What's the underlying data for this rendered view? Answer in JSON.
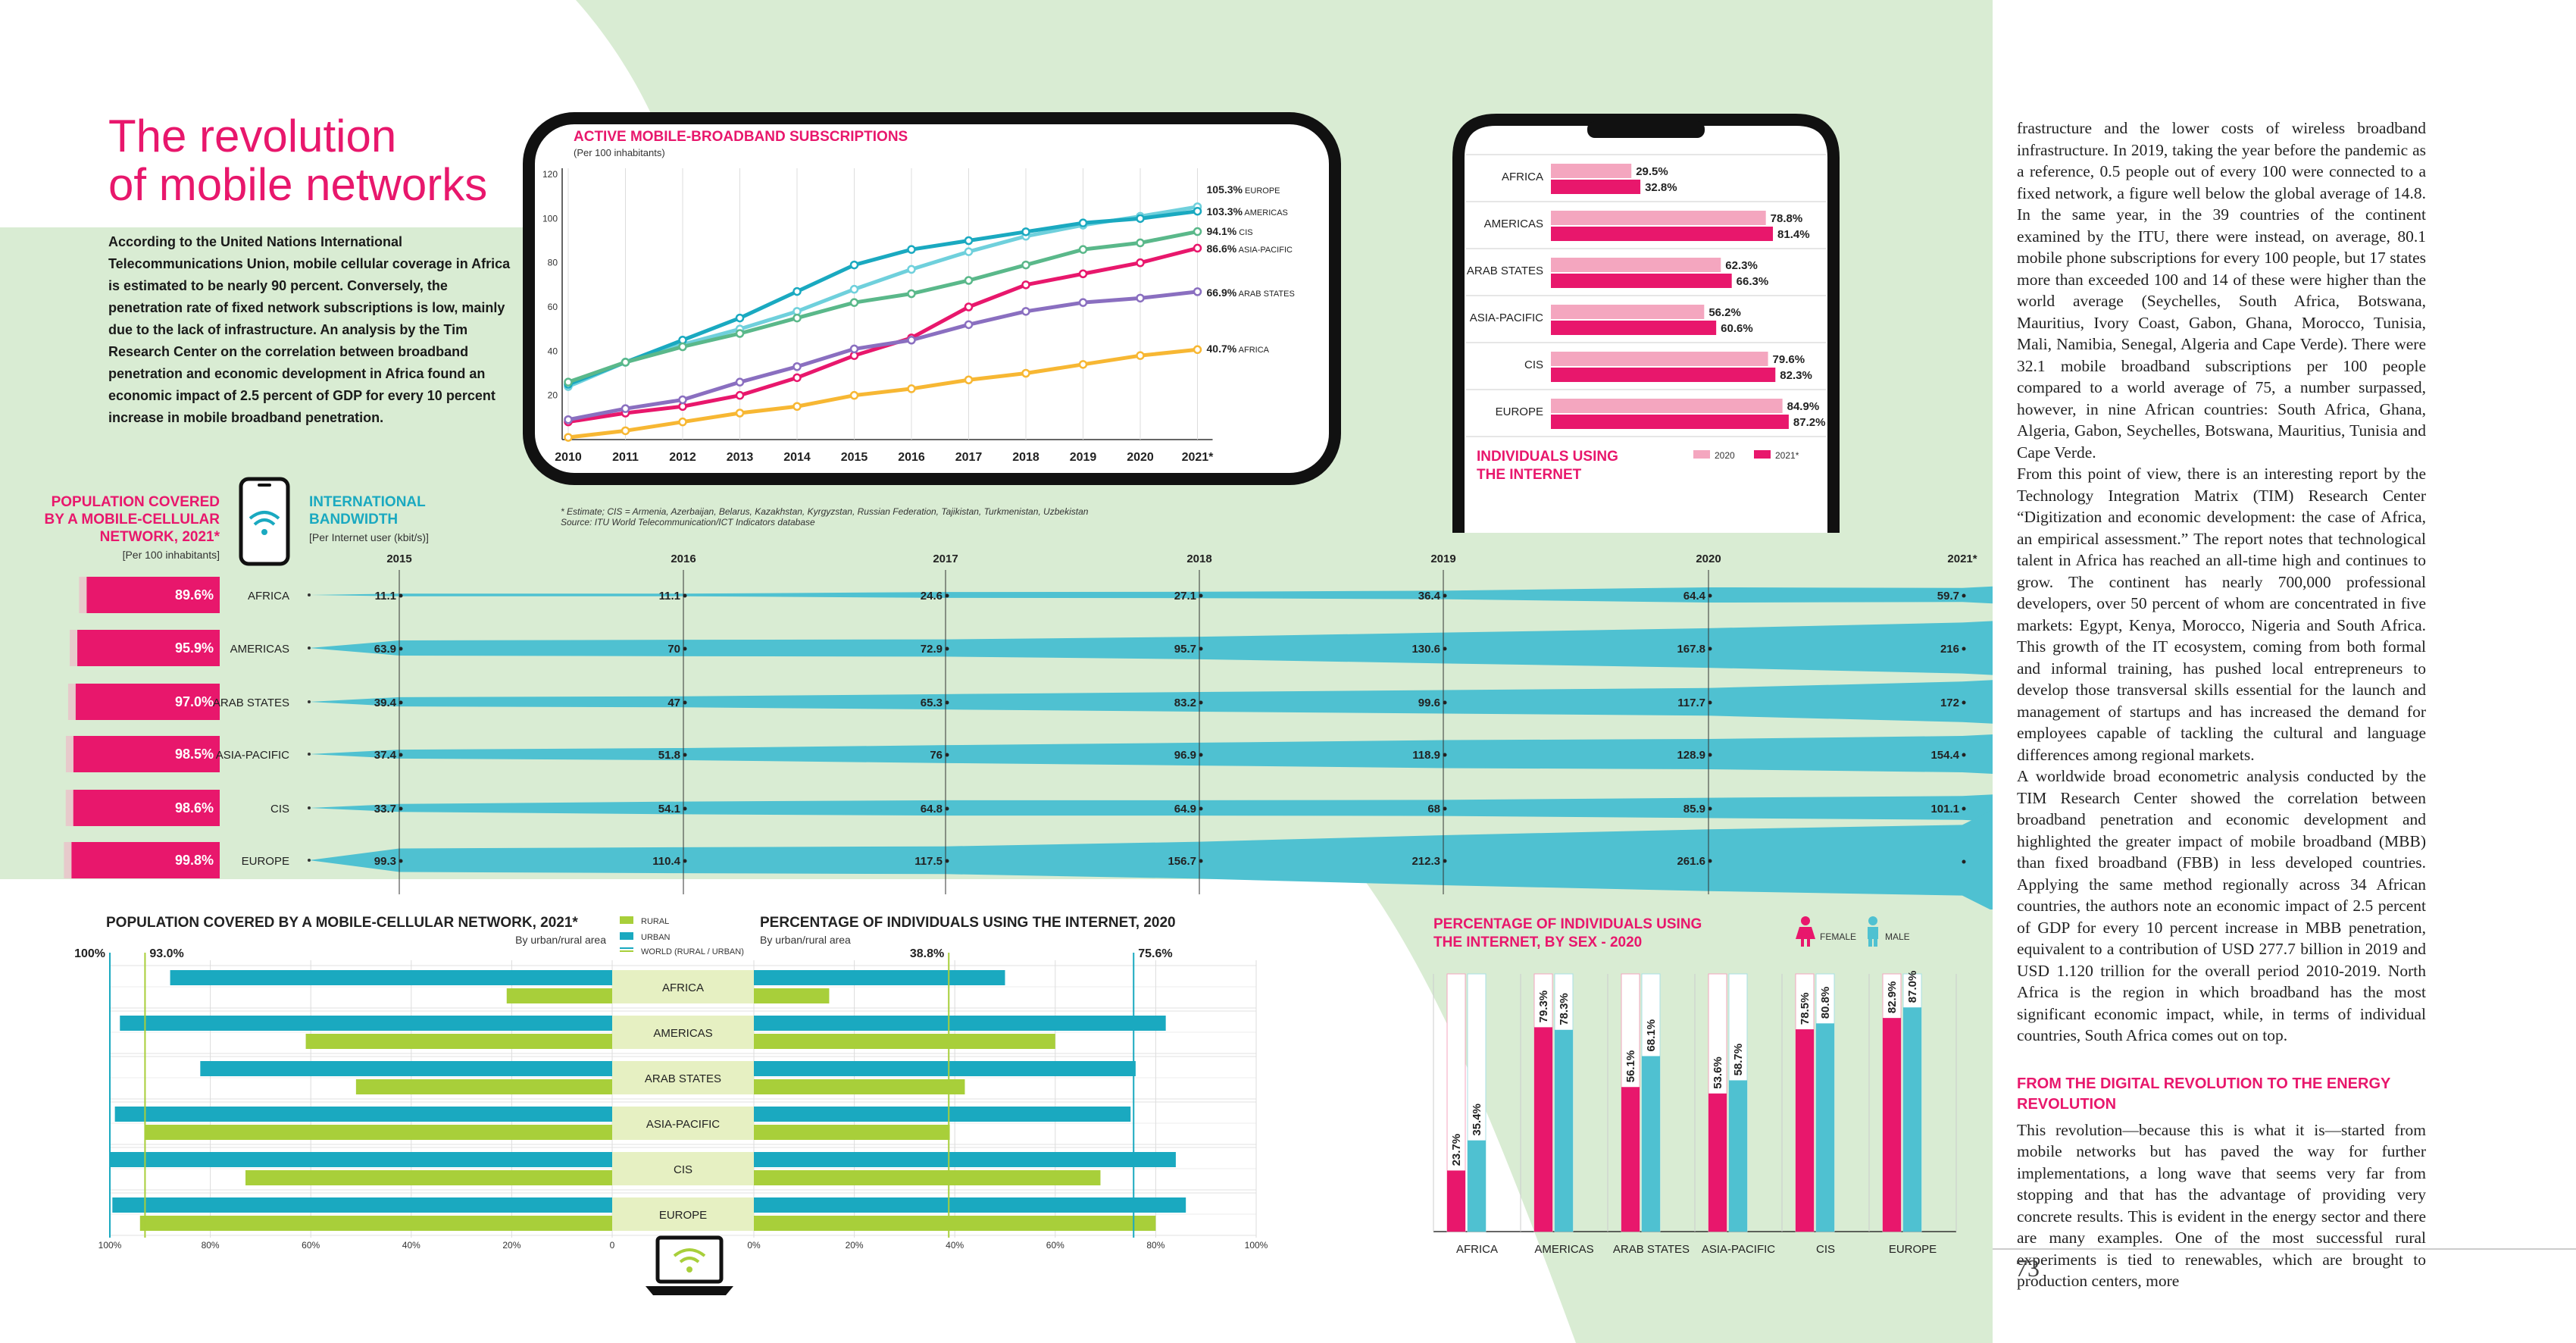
{
  "article": {
    "title_line1": "The revolution",
    "title_line2": "of mobile networks",
    "intro": "According to the United Nations International Telecommunications Union, mobile cellular coverage in Africa is estimated to be nearly 90 percent. Conversely, the penetration rate of fixed network subscriptions is low, mainly due to the lack of infrastructure. An analysis by the Tim Research Center on the correlation between broadband penetration and economic development in Africa found an economic impact of 2.5 percent of GDP for every 10 percent increase in mobile broadband penetration.",
    "body_p1": "frastructure and the lower costs of wireless broadband infrastructure. In 2019, taking the year before the pandemic as a reference, 0.5 people out of every 100 were connected to a fixed network, a figure well below the global average of 14.8. In the same year, in the 39 countries of the continent examined by the ITU, there were instead, on average, 80.1 mobile phone subscriptions for every 100 people, but 17 states more than exceeded 100 and 14 of these were higher than the world average (Seychelles, South Africa, Botswana, Mauritius, Ivory Coast, Gabon, Ghana, Morocco, Tunisia, Mali, Namibia, Senegal, Algeria and Cape Verde). There were 32.1 mobile broadband subscriptions per 100 people compared to a world average of 75, a number surpassed, however, in nine African countries: South Africa, Ghana, Algeria, Gabon, Seychelles, Botswana, Mauritius, Tunisia and Cape Verde.",
    "body_p2": "From this point of view, there is an interesting report by the Technology Integration Matrix (TIM) Research Center “Digitization and economic development: the case of Africa, an empirical assessment.” The report notes that technological talent in Africa has reached an all-time high and continues to grow. The continent has nearly 700,000 professional developers, over 50 percent of whom are concentrated in five markets: Egypt, Kenya, Morocco, Nigeria and South Africa. This growth of the IT ecosystem, coming from both formal and informal training, has pushed local entrepreneurs to develop those transversal skills essential for the launch and management of startups and has increased the demand for employees capable of tackling the cultural and language differences among regional markets.",
    "body_p3": "A worldwide broad econometric analysis conducted by the TIM Research Center showed the correlation between broadband penetration and economic development and highlighted the greater impact of mobile broadband (MBB) than fixed broadband (FBB) in less developed countries. Applying the same method regionally across 34 African countries, the authors note an economic impact of 2.5 percent of GDP for every 10 percent increase in MBB penetration, equivalent to a contribution of USD 277.7 billion in 2019 and USD 1.120 trillion for the overall period 2010-2019. North Africa is the region in which broadband has the most significant economic impact, while, in terms of individual countries, South Africa comes out on top.",
    "section_heading": "FROM THE DIGITAL REVOLUTION TO THE ENERGY REVOLUTION",
    "body_p4": "This revolution—because this is what it is—started from mobile networks but has paved the way for further implementations, a long wave that seems very far from stopping and that has the advantage of providing very concrete results. This is evident in the energy sector and there are many examples. One of the most successful rural experiments is tied to renewables, which are brought to production centers, more",
    "page_number": "73",
    "footnote_line1": "* Estimate; CIS = Armenia, Azerbaijan, Belarus, Kazakhstan, Kyrgyzstan, Russian Federation, Tajikistan, Turkmenistan, Uzbekistan",
    "footnote_line2": "Source: ITU World Telecommunication/ICT Indicators database"
  },
  "colors": {
    "pink": "#e8176c",
    "teal": "#1aa9c0",
    "light_teal": "#6fd0dc",
    "green_teal": "#2fa888",
    "green": "#5ab88a",
    "purple": "#8a6fc0",
    "orange": "#f7b733",
    "lime": "#a8cf3a",
    "light_pink": "#f4a6bf",
    "band": "#4fc1d1",
    "bg_green": "#d9ecd3"
  },
  "chart_data": [
    {
      "type": "line",
      "title": "ACTIVE MOBILE-BROADBAND SUBSCRIPTIONS",
      "subtitle": "(Per 100 inhabitants)",
      "x": [
        "2010",
        "2011",
        "2012",
        "2013",
        "2014",
        "2015",
        "2016",
        "2017",
        "2018",
        "2019",
        "2020",
        "2021*"
      ],
      "ylim": [
        0,
        120
      ],
      "yticks": [
        "20",
        "40",
        "60",
        "80",
        "100",
        "120"
      ],
      "series": [
        {
          "name": "EUROPE",
          "label": "105.3%",
          "color": "#6fd0dc",
          "values": [
            24,
            35,
            43,
            50,
            58,
            68,
            77,
            85,
            92,
            97,
            101,
            105.3
          ]
        },
        {
          "name": "AMERICAS",
          "label": "103.3%",
          "color": "#1aa9c0",
          "values": [
            25,
            35,
            45,
            55,
            67,
            79,
            86,
            90,
            94,
            98,
            100,
            103.3
          ]
        },
        {
          "name": "CIS",
          "label": "94.1%",
          "color": "#5ab88a",
          "values": [
            26,
            35,
            42,
            48,
            55,
            62,
            66,
            72,
            79,
            86,
            89,
            94.1
          ]
        },
        {
          "name": "ASIA-PACIFIC",
          "label": "86.6%",
          "color": "#e8176c",
          "values": [
            8,
            12,
            15,
            20,
            28,
            38,
            46,
            60,
            70,
            75,
            80,
            86.6
          ]
        },
        {
          "name": "ARAB STATES",
          "label": "66.9%",
          "color": "#8a6fc0",
          "values": [
            9,
            14,
            18,
            26,
            33,
            41,
            45,
            52,
            58,
            62,
            64,
            66.9
          ]
        },
        {
          "name": "AFRICA",
          "label": "40.7%",
          "color": "#f7b733",
          "values": [
            1,
            4,
            8,
            12,
            15,
            20,
            23,
            27,
            30,
            34,
            38,
            40.7
          ]
        }
      ]
    },
    {
      "type": "bar",
      "title": "INDIVIDUALS USING THE INTERNET",
      "categories": [
        "AFRICA",
        "AMERICAS",
        "ARAB STATES",
        "ASIA-PACIFIC",
        "CIS",
        "EUROPE"
      ],
      "series": [
        {
          "name": "2020",
          "color": "#f4a6bf",
          "values": [
            29.5,
            78.8,
            62.3,
            56.2,
            79.6,
            84.9
          ],
          "labels": [
            "29.5%",
            "78.8%",
            "62.3%",
            "56.2%",
            "79.6%",
            "84.9%"
          ]
        },
        {
          "name": "2021*",
          "color": "#e8176c",
          "values": [
            32.8,
            81.4,
            66.3,
            60.6,
            82.3,
            87.2
          ],
          "labels": [
            "32.8%",
            "81.4%",
            "66.3%",
            "60.6%",
            "82.3%",
            "87.2%"
          ]
        }
      ]
    },
    {
      "type": "bar",
      "title": "POPULATION COVERED BY A MOBILE-CELLULAR NETWORK, 2021*",
      "subtitle": "[Per 100 inhabitants]",
      "categories": [
        "AFRICA",
        "AMERICAS",
        "ARAB STATES",
        "ASIA-PACIFIC",
        "CIS",
        "EUROPE"
      ],
      "values": [
        89.6,
        95.9,
        97.0,
        98.5,
        98.6,
        99.8
      ],
      "labels": [
        "89.6%",
        "95.9%",
        "97.0%",
        "98.5%",
        "98.6%",
        "99.8%"
      ]
    },
    {
      "type": "area",
      "title": "INTERNATIONAL BANDWIDTH",
      "subtitle": "[Per Internet user (kbit/s)]",
      "x": [
        "2015",
        "2016",
        "2017",
        "2018",
        "2019",
        "2020",
        "2021*"
      ],
      "series": [
        {
          "name": "AFRICA",
          "values": [
            11.1,
            11.1,
            24.6,
            27.1,
            36.4,
            64.4,
            59.7
          ],
          "labels": [
            "11.1",
            "11.1",
            "24.6",
            "27.1",
            "36.4",
            "64.4",
            "59.7"
          ]
        },
        {
          "name": "AMERICAS",
          "values": [
            63.9,
            70,
            72.9,
            95.7,
            130.6,
            167.8,
            216
          ],
          "labels": [
            "63.9",
            "70",
            "72.9",
            "95.7",
            "130.6",
            "167.8",
            "216"
          ]
        },
        {
          "name": "ARAB STATES",
          "values": [
            39.4,
            47,
            65.3,
            83.2,
            99.6,
            117.7,
            172
          ],
          "labels": [
            "39.4",
            "47",
            "65.3",
            "83.2",
            "99.6",
            "117.7",
            "172"
          ]
        },
        {
          "name": "ASIA-PACIFIC",
          "values": [
            37.4,
            51.8,
            76,
            96.9,
            118.9,
            128.9,
            154.4
          ],
          "labels": [
            "37.4",
            "51.8",
            "76",
            "96.9",
            "118.9",
            "128.9",
            "154.4"
          ]
        },
        {
          "name": "CIS",
          "values": [
            33.7,
            54.1,
            64.8,
            64.9,
            68,
            85.9,
            101.1
          ],
          "labels": [
            "33.7",
            "54.1",
            "64.8",
            "64.9",
            "68",
            "85.9",
            "101.1"
          ]
        },
        {
          "name": "EUROPE",
          "values": [
            99.3,
            110.4,
            117.5,
            156.7,
            212.3,
            261.6,
            null
          ],
          "labels": [
            "99.3",
            "110.4",
            "117.5",
            "156.7",
            "212.3",
            "261.6",
            ""
          ]
        }
      ]
    },
    {
      "type": "bar",
      "title": "POPULATION COVERED BY A MOBILE-CELLULAR NETWORK, 2021*",
      "subtitle": "By urban/rural area",
      "legend": [
        "RURAL",
        "URBAN",
        "WORLD (RURAL / URBAN)"
      ],
      "world_labels": [
        "100%",
        "93.0%"
      ],
      "xticks": [
        "100%",
        "80%",
        "60%",
        "40%",
        "20%",
        "0"
      ],
      "categories": [
        "AFRICA",
        "AMERICAS",
        "ARAB STATES",
        "ASIA-PACIFIC",
        "CIS",
        "EUROPE"
      ],
      "series": [
        {
          "name": "URBAN",
          "color": "#1aa9c0",
          "values": [
            88,
            98,
            82,
            99,
            100,
            99.5
          ]
        },
        {
          "name": "RURAL",
          "color": "#a8cf3a",
          "values": [
            21,
            61,
            51,
            93,
            73,
            94
          ]
        }
      ]
    },
    {
      "type": "bar",
      "title": "PERCENTAGE OF INDIVIDUALS USING THE INTERNET, 2020",
      "subtitle": "By urban/rural area",
      "world_labels": [
        "38.8%",
        "75.6%"
      ],
      "xticks": [
        "0%",
        "20%",
        "40%",
        "60%",
        "80%",
        "100%"
      ],
      "categories": [
        "AFRICA",
        "AMERICAS",
        "ARAB STATES",
        "ASIA-PACIFIC",
        "CIS",
        "EUROPE"
      ],
      "series": [
        {
          "name": "URBAN",
          "color": "#1aa9c0",
          "values": [
            50,
            82,
            76,
            75,
            84,
            86
          ]
        },
        {
          "name": "RURAL",
          "color": "#a8cf3a",
          "values": [
            15,
            60,
            42,
            39,
            69,
            80
          ]
        }
      ]
    },
    {
      "type": "bar",
      "title": "PERCENTAGE OF INDIVIDUALS USING THE INTERNET, BY SEX - 2020",
      "legend": [
        "FEMALE",
        "MALE"
      ],
      "categories": [
        "AFRICA",
        "AMERICAS",
        "ARAB STATES",
        "ASIA-PACIFIC",
        "CIS",
        "EUROPE"
      ],
      "series": [
        {
          "name": "FEMALE",
          "color": "#e8176c",
          "values": [
            23.7,
            79.3,
            56.1,
            53.6,
            78.5,
            82.9
          ],
          "labels": [
            "23.7%",
            "79.3%",
            "56.1%",
            "53.6%",
            "78.5%",
            "82.9%"
          ]
        },
        {
          "name": "MALE",
          "color": "#4fc1d1",
          "values": [
            35.4,
            78.3,
            68.1,
            58.7,
            80.8,
            87.0
          ],
          "labels": [
            "35.4%",
            "78.3%",
            "68.1%",
            "58.7%",
            "80.8%",
            "87.0%"
          ]
        }
      ]
    }
  ]
}
